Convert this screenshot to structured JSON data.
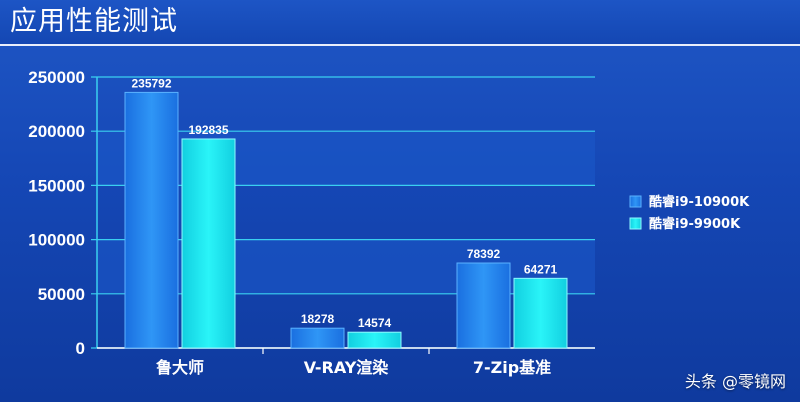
{
  "header": {
    "title": "应用性能测试"
  },
  "watermark": "头条 @零镜网",
  "colors": {
    "series_1": "#2a8cf0",
    "series_2": "#1be7ee",
    "background": "#1547b5",
    "grid": "#3ad0f0"
  },
  "chart_data": {
    "type": "bar",
    "title": "应用性能测试",
    "xlabel": "",
    "ylabel": "",
    "categories": [
      "鲁大师",
      "V-RAY渲染",
      "7-Zip基准"
    ],
    "series": [
      {
        "name": "酷睿i9-10900K",
        "values": [
          235792,
          18278,
          78392
        ]
      },
      {
        "name": "酷睿i9-9900K",
        "values": [
          192835,
          14574,
          64271
        ]
      }
    ],
    "ylim": [
      0,
      250000
    ],
    "yticks": [
      0,
      50000,
      100000,
      150000,
      200000,
      250000
    ],
    "grid": true,
    "legend_position": "right"
  }
}
